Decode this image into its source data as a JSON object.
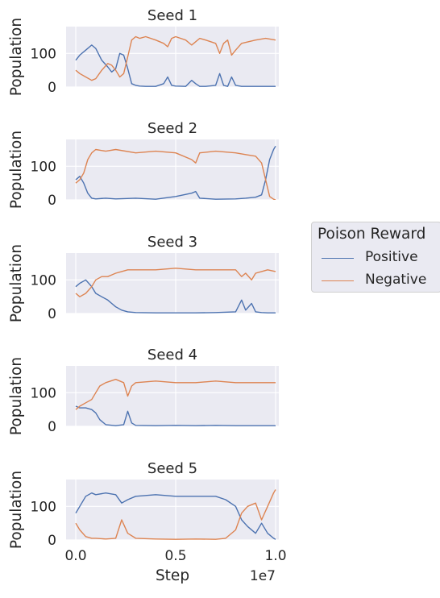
{
  "chart_data": {
    "type": "line",
    "xlabel": "Step",
    "x_offset_label": "1e7",
    "ylabel": "Population",
    "x_range": [
      0,
      10000000
    ],
    "ylim": [
      0,
      180
    ],
    "x_ticks": [
      0,
      5000000,
      10000000
    ],
    "x_tick_labels": [
      "0.0",
      "0.5",
      "1.0"
    ],
    "y_ticks": [
      0,
      100
    ],
    "y_tick_labels": [
      "0",
      "100"
    ],
    "grid": true,
    "legend": {
      "title": "Poison Reward",
      "placement": "center-right, outside plot",
      "entries": [
        {
          "name": "Positive",
          "color": "#4c72b0"
        },
        {
          "name": "Negative",
          "color": "#dd8452"
        }
      ]
    },
    "panels": [
      {
        "title": "Seed 1",
        "series": [
          {
            "name": "Positive",
            "color": "#4c72b0",
            "x": [
              0,
              200000,
              500000,
              800000,
              1000000,
              1300000,
              1600000,
              1800000,
              2000000,
              2200000,
              2400000,
              2600000,
              2800000,
              3000000,
              3200000,
              3500000,
              4000000,
              4400000,
              4600000,
              4800000,
              5000000,
              5500000,
              5800000,
              6000000,
              6200000,
              6500000,
              7000000,
              7200000,
              7400000,
              7600000,
              7800000,
              8000000,
              8300000,
              9000000,
              9500000,
              10000000
            ],
            "y": [
              80,
              95,
              110,
              125,
              115,
              80,
              60,
              45,
              55,
              100,
              95,
              55,
              10,
              5,
              3,
              2,
              2,
              10,
              30,
              5,
              3,
              2,
              20,
              10,
              2,
              2,
              5,
              40,
              5,
              2,
              30,
              5,
              2,
              2,
              2,
              2
            ]
          },
          {
            "name": "Negative",
            "color": "#dd8452",
            "x": [
              0,
              200000,
              500000,
              800000,
              1000000,
              1300000,
              1600000,
              1800000,
              2000000,
              2200000,
              2400000,
              2600000,
              2800000,
              3000000,
              3200000,
              3500000,
              4000000,
              4400000,
              4600000,
              4800000,
              5000000,
              5500000,
              5800000,
              6000000,
              6200000,
              6500000,
              7000000,
              7200000,
              7400000,
              7600000,
              7800000,
              8000000,
              8300000,
              9000000,
              9500000,
              10000000
            ],
            "y": [
              50,
              40,
              30,
              20,
              25,
              50,
              70,
              65,
              50,
              30,
              40,
              90,
              140,
              150,
              145,
              150,
              140,
              130,
              120,
              145,
              150,
              140,
              125,
              135,
              145,
              140,
              130,
              100,
              130,
              140,
              95,
              110,
              130,
              140,
              145,
              140
            ]
          }
        ]
      },
      {
        "title": "Seed 2",
        "series": [
          {
            "name": "Positive",
            "color": "#4c72b0",
            "x": [
              0,
              200000,
              400000,
              600000,
              800000,
              1000000,
              1500000,
              2000000,
              3000000,
              4000000,
              5000000,
              5800000,
              6000000,
              6200000,
              7000000,
              8000000,
              8500000,
              9000000,
              9300000,
              9500000,
              9700000,
              9900000,
              10000000
            ],
            "y": [
              60,
              70,
              50,
              20,
              5,
              3,
              5,
              3,
              5,
              2,
              10,
              20,
              25,
              5,
              2,
              3,
              5,
              8,
              15,
              60,
              120,
              150,
              160
            ]
          },
          {
            "name": "Negative",
            "color": "#dd8452",
            "x": [
              0,
              200000,
              400000,
              600000,
              800000,
              1000000,
              1500000,
              2000000,
              3000000,
              4000000,
              5000000,
              5800000,
              6000000,
              6200000,
              7000000,
              8000000,
              8500000,
              9000000,
              9300000,
              9500000,
              9700000,
              9900000,
              10000000
            ],
            "y": [
              50,
              60,
              80,
              120,
              140,
              150,
              145,
              150,
              140,
              145,
              140,
              120,
              110,
              140,
              145,
              140,
              135,
              130,
              110,
              60,
              10,
              2,
              0
            ]
          }
        ]
      },
      {
        "title": "Seed 3",
        "series": [
          {
            "name": "Positive",
            "color": "#4c72b0",
            "x": [
              0,
              200000,
              500000,
              800000,
              1000000,
              1300000,
              1600000,
              1800000,
              2000000,
              2300000,
              2600000,
              3000000,
              4000000,
              5000000,
              6000000,
              7000000,
              8000000,
              8300000,
              8500000,
              8800000,
              9000000,
              9300000,
              9600000,
              10000000
            ],
            "y": [
              80,
              90,
              100,
              80,
              60,
              50,
              40,
              30,
              20,
              10,
              5,
              3,
              2,
              2,
              2,
              3,
              5,
              40,
              10,
              30,
              5,
              3,
              2,
              2
            ]
          },
          {
            "name": "Negative",
            "color": "#dd8452",
            "x": [
              0,
              200000,
              500000,
              800000,
              1000000,
              1300000,
              1600000,
              1800000,
              2000000,
              2300000,
              2600000,
              3000000,
              4000000,
              5000000,
              6000000,
              7000000,
              8000000,
              8300000,
              8500000,
              8800000,
              9000000,
              9300000,
              9600000,
              10000000
            ],
            "y": [
              60,
              50,
              60,
              80,
              100,
              110,
              110,
              115,
              120,
              125,
              130,
              130,
              130,
              135,
              130,
              130,
              130,
              110,
              120,
              100,
              120,
              125,
              130,
              125
            ]
          }
        ]
      },
      {
        "title": "Seed 4",
        "series": [
          {
            "name": "Positive",
            "color": "#4c72b0",
            "x": [
              0,
              200000,
              500000,
              800000,
              1000000,
              1200000,
              1500000,
              2000000,
              2400000,
              2600000,
              2800000,
              3000000,
              4000000,
              5000000,
              6000000,
              7000000,
              8000000,
              9000000,
              10000000
            ],
            "y": [
              60,
              55,
              55,
              50,
              40,
              20,
              5,
              2,
              5,
              45,
              10,
              3,
              2,
              3,
              2,
              3,
              2,
              2,
              2
            ]
          },
          {
            "name": "Negative",
            "color": "#dd8452",
            "x": [
              0,
              200000,
              500000,
              800000,
              1000000,
              1200000,
              1500000,
              2000000,
              2400000,
              2600000,
              2800000,
              3000000,
              4000000,
              5000000,
              6000000,
              7000000,
              8000000,
              9000000,
              10000000
            ],
            "y": [
              50,
              60,
              70,
              80,
              100,
              120,
              130,
              140,
              130,
              90,
              120,
              130,
              135,
              130,
              130,
              135,
              130,
              130,
              130
            ]
          }
        ]
      },
      {
        "title": "Seed 5",
        "series": [
          {
            "name": "Positive",
            "color": "#4c72b0",
            "x": [
              0,
              200000,
              500000,
              800000,
              1000000,
              1500000,
              2000000,
              2300000,
              2600000,
              3000000,
              4000000,
              5000000,
              6000000,
              7000000,
              7500000,
              8000000,
              8300000,
              8600000,
              9000000,
              9300000,
              9600000,
              9900000,
              10000000
            ],
            "y": [
              80,
              100,
              130,
              140,
              135,
              140,
              135,
              110,
              120,
              130,
              135,
              130,
              130,
              130,
              120,
              100,
              60,
              40,
              20,
              50,
              20,
              5,
              2
            ]
          },
          {
            "name": "Negative",
            "color": "#dd8452",
            "x": [
              0,
              200000,
              500000,
              800000,
              1000000,
              1500000,
              2000000,
              2300000,
              2600000,
              3000000,
              4000000,
              5000000,
              6000000,
              7000000,
              7500000,
              8000000,
              8300000,
              8600000,
              9000000,
              9300000,
              9600000,
              9900000,
              10000000
            ],
            "y": [
              50,
              30,
              10,
              5,
              5,
              3,
              5,
              60,
              20,
              5,
              3,
              2,
              3,
              2,
              5,
              30,
              80,
              100,
              110,
              60,
              100,
              140,
              150
            ]
          }
        ]
      }
    ]
  }
}
